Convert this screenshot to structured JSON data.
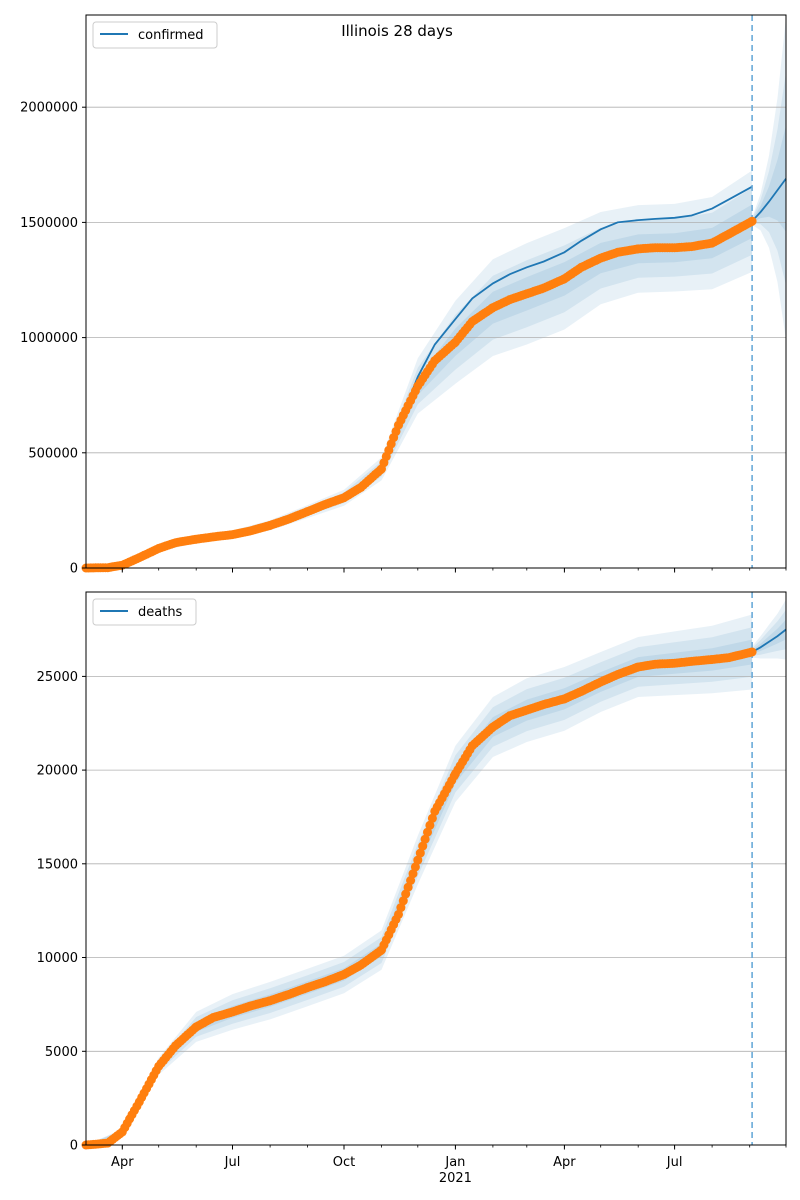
{
  "title": "Illinois 28 days",
  "x_axis": {
    "ticks": [
      {
        "date": "2020-04-01",
        "label": "Apr"
      },
      {
        "date": "2020-07-01",
        "label": "Jul"
      },
      {
        "date": "2020-10-01",
        "label": "Oct"
      },
      {
        "date": "2021-01-01",
        "label": "Jan"
      },
      {
        "date": "2021-04-01",
        "label": "Apr"
      },
      {
        "date": "2021-07-01",
        "label": "Jul"
      }
    ],
    "year_label": "2021",
    "range": [
      "2020-03-02",
      "2021-10-01"
    ]
  },
  "colors": {
    "model_line": "#1f77b4",
    "band": "#1f77b4",
    "observed": "#ff7f0e",
    "forecast_start_line": "#6aaad9",
    "grid": "#b0b0b0"
  },
  "chart_data": [
    {
      "type": "line",
      "legend": "confirmed",
      "legend_position": "top-left",
      "grid": "horizontal",
      "ylim": [
        0,
        2400000
      ],
      "yticks": [
        0,
        500000,
        1000000,
        1500000,
        2000000
      ],
      "forecast_start": "2021-09-03",
      "observed": {
        "x": [
          "2020-03-02",
          "2020-03-20",
          "2020-04-01",
          "2020-04-15",
          "2020-05-01",
          "2020-05-15",
          "2020-06-01",
          "2020-06-15",
          "2020-07-01",
          "2020-07-15",
          "2020-08-01",
          "2020-08-15",
          "2020-09-01",
          "2020-09-15",
          "2020-10-01",
          "2020-10-15",
          "2020-11-01",
          "2020-11-15",
          "2020-12-01",
          "2020-12-15",
          "2021-01-01",
          "2021-01-15",
          "2021-02-01",
          "2021-02-15",
          "2021-03-01",
          "2021-03-15",
          "2021-04-01",
          "2021-04-15",
          "2021-05-01",
          "2021-05-15",
          "2021-06-01",
          "2021-06-15",
          "2021-07-01",
          "2021-07-15",
          "2021-08-01",
          "2021-08-15",
          "2021-09-03"
        ],
        "y": [
          0,
          1500,
          12000,
          45000,
          85000,
          110000,
          125000,
          135000,
          145000,
          160000,
          185000,
          210000,
          245000,
          275000,
          305000,
          350000,
          430000,
          620000,
          790000,
          900000,
          980000,
          1070000,
          1130000,
          1165000,
          1190000,
          1215000,
          1255000,
          1305000,
          1345000,
          1370000,
          1385000,
          1390000,
          1390000,
          1395000,
          1410000,
          1450000,
          1505000
        ]
      },
      "model": {
        "x": [
          "2020-11-01",
          "2020-11-15",
          "2020-12-01",
          "2020-12-15",
          "2021-01-01",
          "2021-01-15",
          "2021-02-01",
          "2021-02-15",
          "2021-03-01",
          "2021-03-15",
          "2021-04-01",
          "2021-04-15",
          "2021-05-01",
          "2021-05-15",
          "2021-06-01",
          "2021-06-15",
          "2021-07-01",
          "2021-07-15",
          "2021-08-01",
          "2021-08-15",
          "2021-09-03"
        ],
        "y": [
          430000,
          620000,
          830000,
          970000,
          1080000,
          1170000,
          1235000,
          1275000,
          1305000,
          1330000,
          1370000,
          1420000,
          1470000,
          1500000,
          1510000,
          1515000,
          1520000,
          1530000,
          1560000,
          1600000,
          1655000
        ]
      },
      "forecast": {
        "x": [
          "2021-09-03",
          "2021-09-10",
          "2021-09-17",
          "2021-09-24",
          "2021-10-01"
        ],
        "y": [
          1505000,
          1545000,
          1590000,
          1640000,
          1690000
        ]
      },
      "bands": {
        "x": [
          "2020-03-02",
          "2020-04-01",
          "2020-05-01",
          "2020-06-01",
          "2020-07-01",
          "2020-08-01",
          "2020-09-01",
          "2020-10-01",
          "2020-11-01",
          "2020-12-01",
          "2021-01-01",
          "2021-02-01",
          "2021-03-01",
          "2021-04-01",
          "2021-05-01",
          "2021-06-01",
          "2021-07-01",
          "2021-08-01",
          "2021-09-03"
        ],
        "center": [
          0,
          12000,
          85000,
          125000,
          145000,
          185000,
          245000,
          305000,
          430000,
          790000,
          980000,
          1130000,
          1190000,
          1255000,
          1345000,
          1385000,
          1390000,
          1410000,
          1505000
        ],
        "spread": [
          0,
          8000,
          15000,
          15000,
          18000,
          22000,
          28000,
          35000,
          50000,
          120000,
          180000,
          210000,
          220000,
          220000,
          200000,
          190000,
          190000,
          200000,
          220000
        ]
      },
      "forecast_bands": {
        "x": [
          "2021-09-03",
          "2021-09-10",
          "2021-09-17",
          "2021-09-24",
          "2021-10-01"
        ],
        "center": [
          1505000,
          1545000,
          1590000,
          1640000,
          1690000
        ],
        "spread": [
          15000,
          80000,
          200000,
          400000,
          700000
        ]
      }
    },
    {
      "type": "line",
      "legend": "deaths",
      "legend_position": "top-left",
      "grid": "horizontal",
      "ylim": [
        0,
        29500
      ],
      "yticks": [
        0,
        5000,
        10000,
        15000,
        20000,
        25000
      ],
      "forecast_start": "2021-09-03",
      "observed": {
        "x": [
          "2020-03-02",
          "2020-03-20",
          "2020-04-01",
          "2020-04-15",
          "2020-05-01",
          "2020-05-15",
          "2020-06-01",
          "2020-06-15",
          "2020-07-01",
          "2020-07-15",
          "2020-08-01",
          "2020-08-15",
          "2020-09-01",
          "2020-09-15",
          "2020-10-01",
          "2020-10-15",
          "2020-11-01",
          "2020-11-15",
          "2020-12-01",
          "2020-12-15",
          "2021-01-01",
          "2021-01-15",
          "2021-02-01",
          "2021-02-15",
          "2021-03-01",
          "2021-03-15",
          "2021-04-01",
          "2021-04-15",
          "2021-05-01",
          "2021-05-15",
          "2021-06-01",
          "2021-06-15",
          "2021-07-01",
          "2021-07-15",
          "2021-08-01",
          "2021-08-15",
          "2021-09-03"
        ],
        "y": [
          0,
          100,
          700,
          2300,
          4200,
          5300,
          6300,
          6800,
          7100,
          7400,
          7700,
          8000,
          8400,
          8700,
          9100,
          9600,
          10400,
          12300,
          15200,
          17800,
          19800,
          21300,
          22300,
          22900,
          23200,
          23500,
          23800,
          24200,
          24700,
          25100,
          25500,
          25650,
          25700,
          25800,
          25900,
          26000,
          26300
        ]
      },
      "model": {
        "x": [
          "2021-08-15",
          "2021-09-03"
        ],
        "y": [
          26000,
          26300
        ]
      },
      "forecast": {
        "x": [
          "2021-09-03",
          "2021-09-10",
          "2021-09-17",
          "2021-09-24",
          "2021-10-01"
        ],
        "y": [
          26300,
          26550,
          26850,
          27150,
          27500
        ]
      },
      "bands": {
        "x": [
          "2020-03-02",
          "2020-04-01",
          "2020-05-01",
          "2020-06-01",
          "2020-07-01",
          "2020-08-01",
          "2020-09-01",
          "2020-10-01",
          "2020-11-01",
          "2020-12-01",
          "2021-01-01",
          "2021-02-01",
          "2021-03-01",
          "2021-04-01",
          "2021-05-01",
          "2021-06-01",
          "2021-07-01",
          "2021-08-01",
          "2021-09-03"
        ],
        "center": [
          0,
          700,
          4200,
          6300,
          7100,
          7700,
          8400,
          9100,
          10400,
          15200,
          19800,
          22300,
          23200,
          23800,
          24700,
          25500,
          25700,
          25900,
          26300
        ],
        "spread": [
          0,
          150,
          450,
          800,
          950,
          1000,
          1000,
          1000,
          1050,
          1300,
          1500,
          1600,
          1700,
          1700,
          1600,
          1600,
          1700,
          1800,
          2000
        ]
      },
      "forecast_bands": {
        "x": [
          "2021-09-03",
          "2021-09-10",
          "2021-09-17",
          "2021-09-24",
          "2021-10-01"
        ],
        "center": [
          26300,
          26550,
          26850,
          27150,
          27500
        ],
        "spread": [
          300,
          600,
          900,
          1200,
          1600
        ]
      }
    }
  ]
}
